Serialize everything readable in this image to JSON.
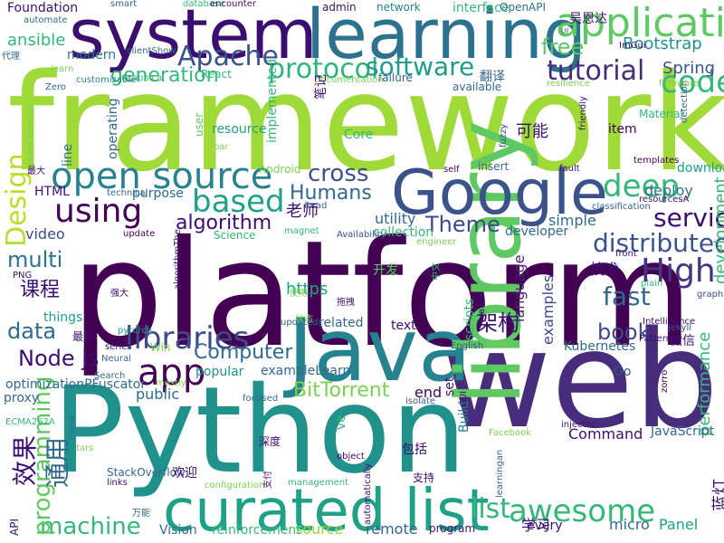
{
  "word_cloud": {
    "words": [
      {
        "text": "framework",
        "color": "#a0da39"
      },
      {
        "text": "platform",
        "color": "#440154"
      },
      {
        "text": "Python",
        "color": "#21918c"
      },
      {
        "text": "web",
        "color": "#472d7b"
      },
      {
        "text": "Java",
        "color": "#26828e"
      },
      {
        "text": "library",
        "color": "#5ec962"
      },
      {
        "text": "learning",
        "color": "#2c728e"
      },
      {
        "text": "system",
        "color": "#3b0f70"
      },
      {
        "text": "Google",
        "color": "#3b528b"
      },
      {
        "text": "curated list",
        "color": "#1fa187"
      },
      {
        "text": "applications",
        "color": "#5ec962"
      },
      {
        "text": "open source",
        "color": "#26828e"
      },
      {
        "text": "awesome",
        "color": "#35b779"
      },
      {
        "text": "app",
        "color": "#440154"
      },
      {
        "text": "High",
        "color": "#46327e"
      },
      {
        "text": "libraries",
        "color": "#3e4989"
      },
      {
        "text": "based",
        "color": "#1fa187"
      },
      {
        "text": "deep",
        "color": "#35b779"
      },
      {
        "text": "code",
        "color": "#35b779"
      },
      {
        "text": "protocol",
        "color": "#2eb37c"
      },
      {
        "text": "software",
        "color": "#1e9c89"
      },
      {
        "text": "tutorial",
        "color": "#472c7a"
      },
      {
        "text": "Apache",
        "color": "#3b528b"
      },
      {
        "text": "using",
        "color": "#440154"
      },
      {
        "text": "service",
        "color": "#3b0f70"
      },
      {
        "text": "distributed",
        "color": "#3b528b"
      },
      {
        "text": "free",
        "color": "#5ec962"
      },
      {
        "text": "list",
        "color": "#35b779"
      },
      {
        "text": "fast",
        "color": "#31688e"
      },
      {
        "text": "book",
        "color": "#3e4989"
      },
      {
        "text": "Theme",
        "color": "#3e4989"
      },
      {
        "text": "cross",
        "color": "#3b528b"
      },
      {
        "text": "Humans",
        "color": "#31688e"
      },
      {
        "text": "algorithm",
        "color": "#3b0f70"
      },
      {
        "text": "generation",
        "color": "#35b779"
      },
      {
        "text": "BitTorrent",
        "color": "#7ad151"
      },
      {
        "text": "Node js",
        "color": "#3b0f70"
      },
      {
        "text": "multi",
        "color": "#2c728e"
      },
      {
        "text": "data",
        "color": "#31688e"
      },
      {
        "text": "machine",
        "color": "#35b779"
      },
      {
        "text": "Computer",
        "color": "#31688e"
      },
      {
        "text": "Design",
        "color": "#b8de29"
      },
      {
        "text": "programming",
        "color": "#5ec962"
      },
      {
        "text": "ansible",
        "color": "#35b779"
      },
      {
        "text": "Bootstrap",
        "color": "#21918c"
      },
      {
        "text": "Spring",
        "color": "#3b528b"
      },
      {
        "text": "Command",
        "color": "#3b0f70"
      },
      {
        "text": "source",
        "color": "#90d743"
      },
      {
        "text": "remote",
        "color": "#31688e"
      },
      {
        "text": "reinforcement",
        "color": "#35b779"
      },
      {
        "text": "Vision",
        "color": "#31688e"
      },
      {
        "text": "micro",
        "color": "#31688e"
      },
      {
        "text": "Panel",
        "color": "#1fa187"
      },
      {
        "text": "Kubernetes",
        "color": "#31688e"
      },
      {
        "text": "performance",
        "color": "#35b779"
      },
      {
        "text": "deploy",
        "color": "#2c728e"
      },
      {
        "text": "simple",
        "color": "#31688e"
      },
      {
        "text": "utility",
        "color": "#31688e"
      },
      {
        "text": "download",
        "color": "#1fa187"
      },
      {
        "text": "development",
        "color": "#35b779"
      },
      {
        "text": "examples",
        "color": "#3e4989"
      },
      {
        "text": "language",
        "color": "#482475"
      },
      {
        "text": "scripts",
        "color": "#35b779"
      },
      {
        "text": "JavaScript",
        "color": "#31688e"
      },
      {
        "text": "Build",
        "color": "#26828e"
      },
      {
        "text": "public",
        "color": "#31688e"
      },
      {
        "text": "popular",
        "color": "#21918c"
      },
      {
        "text": "related",
        "color": "#31688e"
      },
      {
        "text": "text",
        "color": "#3b0f70"
      },
      {
        "text": "end",
        "color": "#440154"
      },
      {
        "text": "https",
        "color": "#1fa187"
      },
      {
        "text": "collection",
        "color": "#35b779"
      },
      {
        "text": "developer",
        "color": "#31688e"
      },
      {
        "text": "video",
        "color": "#3e4989"
      },
      {
        "text": "things",
        "color": "#1fa187"
      },
      {
        "text": "HTML",
        "color": "#3b0f70"
      },
      {
        "text": "purpose",
        "color": "#31688e"
      },
      {
        "text": "operating",
        "color": "#31688e"
      },
      {
        "text": "line",
        "color": "#31688e"
      },
      {
        "text": "resource",
        "color": "#1fa187"
      },
      {
        "text": "Core",
        "color": "#35b779"
      },
      {
        "text": "item",
        "color": "#440154"
      },
      {
        "text": "Material",
        "color": "#35b779"
      },
      {
        "text": "Android",
        "color": "#7ad151"
      },
      {
        "text": "Science",
        "color": "#35b779"
      },
      {
        "text": "implemented",
        "color": "#35b779"
      },
      {
        "text": "user",
        "color": "#5ec962"
      },
      {
        "text": "insert",
        "color": "#31688e"
      },
      {
        "text": "self",
        "color": "#440154"
      },
      {
        "text": "available",
        "color": "#31688e"
      },
      {
        "text": "failure",
        "color": "#31688e"
      },
      {
        "text": "modern",
        "color": "#2c728e"
      },
      {
        "text": "network",
        "color": "#26828e"
      },
      {
        "text": "admin",
        "color": "#3b0f70"
      },
      {
        "text": "interface",
        "color": "#35b779"
      },
      {
        "text": "OpenAPI",
        "color": "#2c728e"
      },
      {
        "text": "Foundation",
        "color": "#3b0f70"
      },
      {
        "text": "automate",
        "color": "#31688e"
      },
      {
        "text": "smart",
        "color": "#31688e"
      },
      {
        "text": "database",
        "color": "#35b779"
      },
      {
        "text": "encounter",
        "color": "#3b0f70"
      },
      {
        "text": "clientShow",
        "color": "#31688e"
      },
      {
        "text": "Graphical",
        "color": "#35b779"
      },
      {
        "text": "React",
        "color": "#35b779"
      },
      {
        "text": "customizable",
        "color": "#26828e"
      },
      {
        "text": "documentation",
        "color": "#7ad151"
      },
      {
        "text": "resilience",
        "color": "#7ad151"
      },
      {
        "text": "firmware",
        "color": "#7ad151"
      },
      {
        "text": "ImGui",
        "color": "#3b0f70"
      },
      {
        "text": "Zero",
        "color": "#31688e"
      },
      {
        "text": "learn",
        "color": "#7ad151"
      },
      {
        "text": "detection",
        "color": "#31688e"
      },
      {
        "text": "friendly",
        "color": "#3b0f70"
      },
      {
        "text": "fuzzy",
        "color": "#3e4989"
      },
      {
        "text": "templates",
        "color": "#440154"
      },
      {
        "text": "fault",
        "color": "#3b0f70"
      },
      {
        "text": "resourcesA",
        "color": "#3b0f70"
      },
      {
        "text": "classification",
        "color": "#31688e"
      },
      {
        "text": "itead",
        "color": "#31688e"
      },
      {
        "text": "bar",
        "color": "#7ad151"
      },
      {
        "text": "technical",
        "color": "#31688e"
      },
      {
        "text": "PNG",
        "color": "#3b0f70"
      },
      {
        "text": "update",
        "color": "#440154"
      },
      {
        "text": "magnet",
        "color": "#35b779"
      },
      {
        "text": "Availability",
        "color": "#3b528b"
      },
      {
        "text": "front",
        "color": "#3b0f70"
      },
      {
        "text": "engineer",
        "color": "#7ad151"
      },
      {
        "text": "v2",
        "color": "#3b0f70"
      },
      {
        "text": "plain",
        "color": "#35b779"
      },
      {
        "text": "graphing",
        "color": "#3b528b"
      },
      {
        "text": "pytorch",
        "color": "#1fa187"
      },
      {
        "text": "updated",
        "color": "#31688e"
      },
      {
        "text": "Jekyll",
        "color": "#3b528b"
      },
      {
        "text": "Patterns",
        "color": "#3b0f70"
      },
      {
        "text": "Intelligence",
        "color": "#3b0f70"
      },
      {
        "text": "next",
        "color": "#7ad151"
      },
      {
        "text": "English",
        "color": "#3b528b"
      },
      {
        "text": "series",
        "color": "#3b0f70"
      },
      {
        "text": "Neural",
        "color": "#31688e"
      },
      {
        "text": "Win",
        "color": "#7ad151"
      },
      {
        "text": "proxy",
        "color": "#31688e"
      },
      {
        "text": "ECMA262A",
        "color": "#35b779"
      },
      {
        "text": "mostly",
        "color": "#7ad151"
      },
      {
        "text": "focused",
        "color": "#31688e"
      },
      {
        "text": "Search",
        "color": "#31688e"
      },
      {
        "text": "isolate",
        "color": "#31688e"
      },
      {
        "text": "GUI",
        "color": "#3b0f70"
      },
      {
        "text": "zorro",
        "color": "#440154"
      },
      {
        "text": "injector",
        "color": "#3b0f70"
      },
      {
        "text": "Facebook",
        "color": "#7ad151"
      },
      {
        "text": "tars",
        "color": "#7ad151"
      },
      {
        "text": "object",
        "color": "#440154"
      },
      {
        "text": "links",
        "color": "#3b0f70"
      },
      {
        "text": "StackOverflow",
        "color": "#31688e"
      },
      {
        "text": "management",
        "color": "#35b779"
      },
      {
        "text": "configuration",
        "color": "#7ad151"
      },
      {
        "text": "learningan",
        "color": "#31688e"
      },
      {
        "text": "automatically",
        "color": "#3b0f70"
      },
      {
        "text": "program",
        "color": "#3b0f70"
      },
      {
        "text": "every",
        "color": "#3b0f70"
      },
      {
        "text": "API",
        "color": "#3b0f70"
      },
      {
        "text": "optimizationPFuscator",
        "color": "#31688e"
      },
      {
        "text": "algorithmThe",
        "color": "#3b0f70"
      },
      {
        "text": "perfectionists",
        "color": "#7ad151"
      },
      {
        "text": "client",
        "color": "#31688e"
      },
      {
        "text": "set",
        "color": "#3b0f70"
      },
      {
        "text": "ve",
        "color": "#35b779"
      },
      {
        "text": "UI",
        "color": "#3b528b"
      },
      {
        "text": "Go",
        "color": "#3b528b"
      },
      {
        "text": "exampleLearn",
        "color": "#31688e"
      },
      {
        "text": "antd",
        "color": "#3b0f70"
      },
      {
        "text": "中文",
        "color": "#35b779"
      },
      {
        "text": "可能",
        "color": "#3b0f70"
      },
      {
        "text": "老师",
        "color": "#3b0f70"
      },
      {
        "text": "吴恩达",
        "color": "#3b0f70"
      },
      {
        "text": "翻译",
        "color": "#31688e"
      },
      {
        "text": "笔记",
        "color": "#3b0f70"
      },
      {
        "text": "课程",
        "color": "#3b0f70"
      },
      {
        "text": "开发",
        "color": "#5ec962"
      },
      {
        "text": "技术",
        "color": "#3b0f70"
      },
      {
        "text": "架构",
        "color": "#3b0f70"
      },
      {
        "text": "微信",
        "color": "#3b0f70"
      },
      {
        "text": "效果",
        "color": "#3b0f70"
      },
      {
        "text": "通用",
        "color": "#31688e"
      },
      {
        "text": "最好",
        "color": "#3b0f70"
      },
      {
        "text": "深度",
        "color": "#3b0f70"
      },
      {
        "text": "包括",
        "color": "#3b0f70"
      },
      {
        "text": "支持",
        "color": "#3b0f70"
      },
      {
        "text": "欢迎",
        "color": "#3b0f70"
      },
      {
        "text": "学习",
        "color": "#3b0f70"
      },
      {
        "text": "蓝灯",
        "color": "#3b0f70"
      },
      {
        "text": "使用",
        "color": "#7ad151"
      },
      {
        "text": "拖拽",
        "color": "#3b0f70"
      },
      {
        "text": "代理",
        "color": "#31688e"
      },
      {
        "text": "最大",
        "color": "#3b0f70"
      },
      {
        "text": "强大",
        "color": "#3b0f70"
      },
      {
        "text": "状态",
        "color": "#7ad151"
      },
      {
        "text": "万能",
        "color": "#31688e"
      },
      {
        "text": "支付",
        "color": "#3b0f70"
      }
    ]
  }
}
